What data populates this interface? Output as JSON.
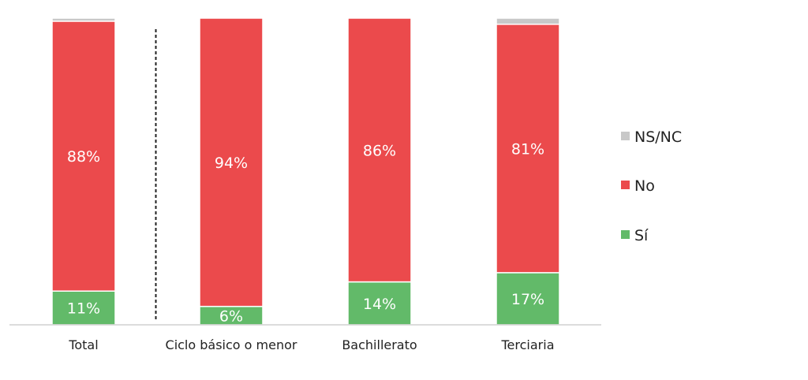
{
  "chart_data": {
    "type": "bar",
    "stacked": true,
    "categories": [
      "Total",
      "Ciclo básico o menor",
      "Bachillerato",
      "Terciaria"
    ],
    "series": [
      {
        "name": "Sí",
        "color": "#62BA69",
        "values": [
          11,
          6,
          14,
          17
        ],
        "labels": [
          "11%",
          "6%",
          "14%",
          "17%"
        ]
      },
      {
        "name": "No",
        "color": "#EB4A4C",
        "values": [
          88,
          94,
          86,
          81
        ],
        "labels": [
          "88%",
          "94%",
          "86%",
          "81%"
        ]
      },
      {
        "name": "NS/NC",
        "color": "#C8C8C8",
        "values": [
          1,
          0,
          0,
          2
        ],
        "labels": [
          "",
          "",
          "",
          ""
        ]
      }
    ],
    "ylim": [
      0,
      100
    ],
    "grid": false,
    "legend_position": "right",
    "legend_order": [
      "NS/NC",
      "No",
      "Sí"
    ],
    "separator_after_category": 0,
    "title": "",
    "xlabel": "",
    "ylabel": ""
  }
}
